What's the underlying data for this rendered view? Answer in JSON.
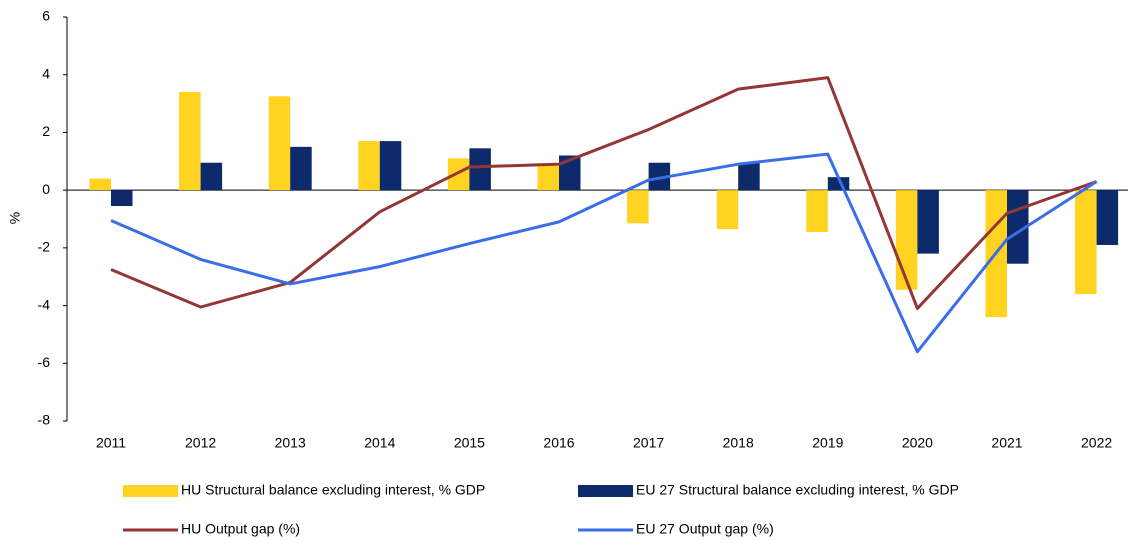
{
  "chart_data": {
    "type": "combo",
    "y_label": "%",
    "categories": [
      "2011",
      "2012",
      "2013",
      "2014",
      "2015",
      "2016",
      "2017",
      "2018",
      "2019",
      "2020",
      "2021",
      "2022"
    ],
    "series": [
      {
        "name": "HU Structural balance excluding interest, % GDP",
        "type": "bar",
        "color": "#FFD320",
        "values": [
          0.4,
          3.4,
          3.25,
          1.7,
          1.1,
          0.9,
          -1.15,
          -1.35,
          -1.45,
          -3.45,
          -4.4,
          -3.6
        ]
      },
      {
        "name": "EU 27 Structural balance excluding interest, % GDP",
        "type": "bar",
        "color": "#0D2B6B",
        "values": [
          -0.55,
          0.95,
          1.5,
          1.7,
          1.45,
          1.2,
          0.95,
          0.95,
          0.45,
          -2.2,
          -2.55,
          -1.9
        ]
      },
      {
        "name": "HU Output gap (%)",
        "type": "line",
        "color": "#943634",
        "values": [
          -2.75,
          -4.05,
          -3.2,
          -0.75,
          0.8,
          0.9,
          2.1,
          3.5,
          3.9,
          -4.1,
          -0.8,
          0.3
        ]
      },
      {
        "name": "EU 27 Output gap (%)",
        "type": "line",
        "color": "#3A6EE8",
        "values": [
          -1.05,
          -2.4,
          -3.25,
          -2.65,
          -1.85,
          -1.1,
          0.35,
          0.9,
          1.25,
          -5.6,
          -1.7,
          0.3
        ]
      }
    ],
    "ylim": [
      -8,
      6
    ],
    "yticks": [
      -8,
      -6,
      -4,
      -2,
      0,
      2,
      4,
      6
    ]
  }
}
